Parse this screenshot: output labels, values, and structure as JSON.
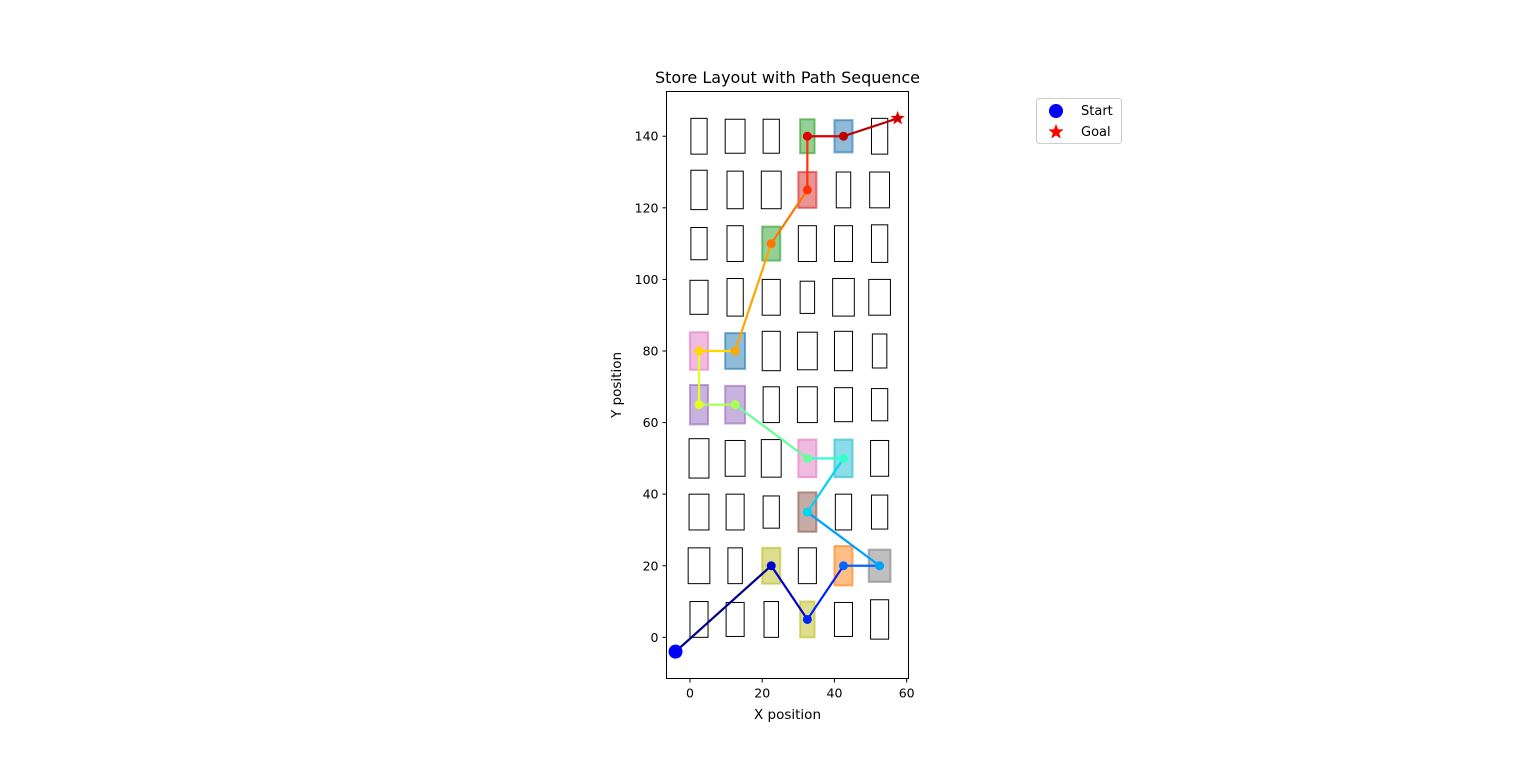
{
  "chart_data": {
    "type": "scatter",
    "title": "Store Layout with Path Sequence",
    "xlabel": "X position",
    "ylabel": "Y position",
    "xlim": [
      -6.5,
      60.5
    ],
    "ylim": [
      -11.5,
      152.5
    ],
    "xticks": [
      0,
      20,
      40,
      60
    ],
    "yticks": [
      0,
      20,
      40,
      60,
      80,
      100,
      120,
      140
    ],
    "grid": false,
    "legend": {
      "placement": "outside-top-right",
      "entries": [
        {
          "label": "Start",
          "marker": "circle",
          "color": "#0000ff"
        },
        {
          "label": "Goal",
          "marker": "star",
          "color": "#ff0000"
        }
      ]
    },
    "shelves": [
      {
        "x": 2.5,
        "y": 5,
        "w": 5,
        "h": 10
      },
      {
        "x": 12.5,
        "y": 5,
        "w": 5,
        "h": 9.5
      },
      {
        "x": 22.5,
        "y": 5,
        "w": 4,
        "h": 10
      },
      {
        "x": 32.5,
        "y": 5,
        "w": 4,
        "h": 10,
        "highlight": "#bcbd22"
      },
      {
        "x": 42.5,
        "y": 5,
        "w": 5,
        "h": 9.5
      },
      {
        "x": 52.5,
        "y": 5,
        "w": 5,
        "h": 11
      },
      {
        "x": 2.5,
        "y": 20,
        "w": 6,
        "h": 10
      },
      {
        "x": 12.5,
        "y": 20,
        "w": 4,
        "h": 10
      },
      {
        "x": 22.5,
        "y": 20,
        "w": 5,
        "h": 10,
        "highlight": "#bcbd22"
      },
      {
        "x": 32.5,
        "y": 20,
        "w": 5,
        "h": 10
      },
      {
        "x": 42.5,
        "y": 20,
        "w": 5,
        "h": 11,
        "highlight": "#ff7f0e"
      },
      {
        "x": 52.5,
        "y": 20,
        "w": 6,
        "h": 9,
        "highlight": "#7f7f7f"
      },
      {
        "x": 2.5,
        "y": 35,
        "w": 5.5,
        "h": 10
      },
      {
        "x": 12.5,
        "y": 35,
        "w": 5,
        "h": 10
      },
      {
        "x": 22.5,
        "y": 35,
        "w": 4.5,
        "h": 9
      },
      {
        "x": 32.5,
        "y": 35,
        "w": 5,
        "h": 11,
        "highlight": "#8c564b"
      },
      {
        "x": 42.5,
        "y": 35,
        "w": 4.5,
        "h": 10
      },
      {
        "x": 52.5,
        "y": 35,
        "w": 4.5,
        "h": 9.5
      },
      {
        "x": 2.5,
        "y": 50,
        "w": 5.5,
        "h": 11
      },
      {
        "x": 12.5,
        "y": 50,
        "w": 5.5,
        "h": 10
      },
      {
        "x": 22.5,
        "y": 50,
        "w": 5.5,
        "h": 10.5
      },
      {
        "x": 32.5,
        "y": 50,
        "w": 5,
        "h": 10.5,
        "highlight": "#e377c2"
      },
      {
        "x": 42.5,
        "y": 50,
        "w": 5,
        "h": 10.5,
        "highlight": "#17becf"
      },
      {
        "x": 52.5,
        "y": 50,
        "w": 5,
        "h": 10
      },
      {
        "x": 2.5,
        "y": 65,
        "w": 5,
        "h": 11,
        "highlight": "#9467bd"
      },
      {
        "x": 12.5,
        "y": 65,
        "w": 5.5,
        "h": 10.5,
        "highlight": "#9467bd"
      },
      {
        "x": 22.5,
        "y": 65,
        "w": 4.5,
        "h": 10
      },
      {
        "x": 32.5,
        "y": 65,
        "w": 5.5,
        "h": 10
      },
      {
        "x": 42.5,
        "y": 65,
        "w": 5,
        "h": 9.5
      },
      {
        "x": 52.5,
        "y": 65,
        "w": 4.5,
        "h": 9
      },
      {
        "x": 2.5,
        "y": 80,
        "w": 5,
        "h": 10.5,
        "highlight": "#e377c2"
      },
      {
        "x": 12.5,
        "y": 80,
        "w": 5.5,
        "h": 10,
        "highlight": "#1f77b4"
      },
      {
        "x": 22.5,
        "y": 80,
        "w": 5,
        "h": 11
      },
      {
        "x": 32.5,
        "y": 80,
        "w": 5.5,
        "h": 10.5
      },
      {
        "x": 42.5,
        "y": 80,
        "w": 5,
        "h": 11
      },
      {
        "x": 52.5,
        "y": 80,
        "w": 4,
        "h": 9.5
      },
      {
        "x": 2.5,
        "y": 95,
        "w": 5,
        "h": 9.5
      },
      {
        "x": 12.5,
        "y": 95,
        "w": 4.5,
        "h": 10.5
      },
      {
        "x": 22.5,
        "y": 95,
        "w": 5,
        "h": 10
      },
      {
        "x": 32.5,
        "y": 95,
        "w": 4,
        "h": 9
      },
      {
        "x": 42.5,
        "y": 95,
        "w": 6,
        "h": 10.5
      },
      {
        "x": 52.5,
        "y": 95,
        "w": 6,
        "h": 10
      },
      {
        "x": 2.5,
        "y": 110,
        "w": 4.5,
        "h": 9
      },
      {
        "x": 12.5,
        "y": 110,
        "w": 4.5,
        "h": 10
      },
      {
        "x": 22.5,
        "y": 110,
        "w": 5,
        "h": 9.5,
        "highlight": "#2ca02c"
      },
      {
        "x": 32.5,
        "y": 110,
        "w": 5,
        "h": 10
      },
      {
        "x": 42.5,
        "y": 110,
        "w": 5,
        "h": 10
      },
      {
        "x": 52.5,
        "y": 110,
        "w": 4.5,
        "h": 10.5
      },
      {
        "x": 2.5,
        "y": 125,
        "w": 4.5,
        "h": 11
      },
      {
        "x": 12.5,
        "y": 125,
        "w": 4.5,
        "h": 10.5
      },
      {
        "x": 22.5,
        "y": 125,
        "w": 5.5,
        "h": 10.5
      },
      {
        "x": 32.5,
        "y": 125,
        "w": 5,
        "h": 10,
        "highlight": "#d62728"
      },
      {
        "x": 42.5,
        "y": 125,
        "w": 4,
        "h": 10
      },
      {
        "x": 52.5,
        "y": 125,
        "w": 5.5,
        "h": 10
      },
      {
        "x": 2.5,
        "y": 140,
        "w": 4.5,
        "h": 10
      },
      {
        "x": 12.5,
        "y": 140,
        "w": 5.5,
        "h": 9.5
      },
      {
        "x": 22.5,
        "y": 140,
        "w": 4.5,
        "h": 9.5
      },
      {
        "x": 32.5,
        "y": 140,
        "w": 4,
        "h": 9.5,
        "highlight": "#2ca02c"
      },
      {
        "x": 42.5,
        "y": 140,
        "w": 5,
        "h": 9,
        "highlight": "#1f77b4"
      },
      {
        "x": 52.5,
        "y": 140,
        "w": 4.5,
        "h": 10
      }
    ],
    "path": {
      "points": [
        [
          -4,
          -4
        ],
        [
          22.5,
          20
        ],
        [
          32.5,
          5
        ],
        [
          42.5,
          20
        ],
        [
          52.5,
          20
        ],
        [
          32.5,
          35
        ],
        [
          42.5,
          50
        ],
        [
          32.5,
          50
        ],
        [
          12.5,
          65
        ],
        [
          2.5,
          65
        ],
        [
          2.5,
          80
        ],
        [
          12.5,
          80
        ],
        [
          22.5,
          110
        ],
        [
          32.5,
          125
        ],
        [
          32.5,
          140
        ],
        [
          42.5,
          140
        ],
        [
          57.5,
          145
        ]
      ],
      "segment_colors": [
        "#00008b",
        "#0000cd",
        "#0022ff",
        "#0066ff",
        "#00a0ff",
        "#00d4f0",
        "#33ffcc",
        "#66ff99",
        "#aaff55",
        "#e0ff22",
        "#ffd700",
        "#ffa500",
        "#ff7500",
        "#ff3300",
        "#dd0000",
        "#bb0000"
      ]
    },
    "start": {
      "x": -4,
      "y": -4,
      "label": "Start"
    },
    "goal": {
      "x": 57.5,
      "y": 145,
      "label": "Goal"
    }
  }
}
